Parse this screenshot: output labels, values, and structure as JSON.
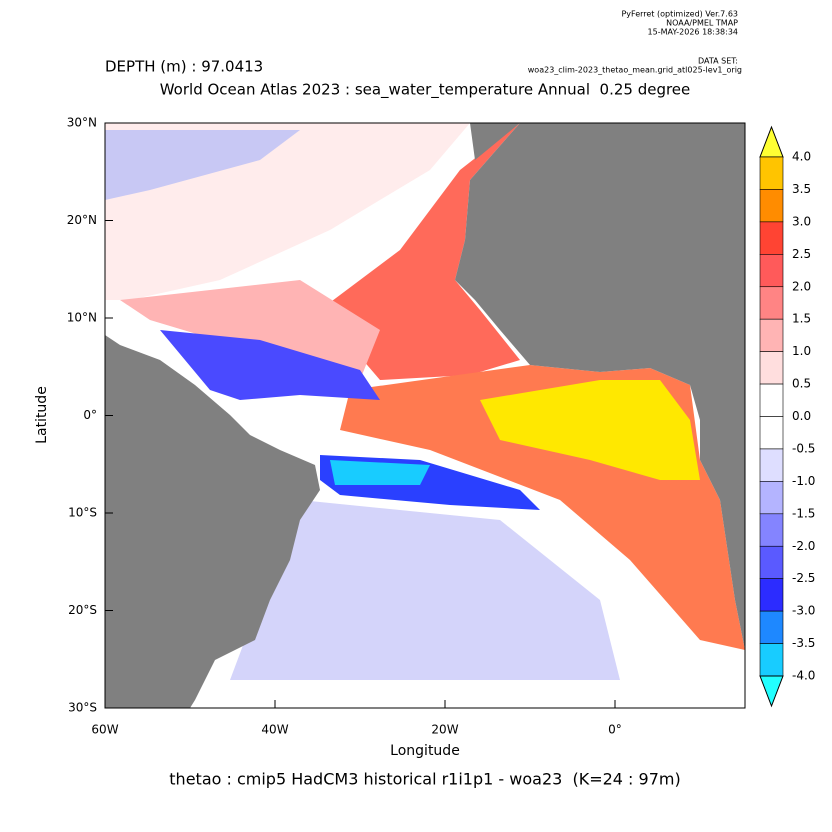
{
  "header": {
    "software": "PyFerret (optimized) Ver.7.63",
    "lab": "NOAA/PMEL TMAP",
    "date": "15-MAY-2026 18:38:34",
    "dataset_label": "DATA SET:",
    "dataset": "woa23_clim-2023_thetao_mean.grid_atl025-lev1_orig"
  },
  "depth": "DEPTH (m) : 97.0413",
  "title": "World Ocean Atlas 2023 : sea_water_temperature Annual  0.25 degree",
  "x_axis": {
    "label": "Longitude",
    "ticks": [
      "60W",
      "40W",
      "20W",
      "0°"
    ]
  },
  "y_axis": {
    "label": "Latitude",
    "ticks": [
      "30°N",
      "20°N",
      "10°N",
      "0°",
      "10°S",
      "20°S",
      "30°S"
    ]
  },
  "colorbar": {
    "labels": [
      "4.0",
      "3.5",
      "3.0",
      "2.5",
      "2.0",
      "1.5",
      "1.0",
      "0.5",
      "0.0",
      "-0.5",
      "-1.0",
      "-1.5",
      "-2.0",
      "-2.5",
      "-3.0",
      "-3.5",
      "-4.0"
    ],
    "colors": [
      "#ffff33",
      "#ffc400",
      "#ff8c00",
      "#ff4433",
      "#ff5a5a",
      "#ff8484",
      "#ffb4b4",
      "#ffdede",
      "#ffffff",
      "#ffffff",
      "#dedeff",
      "#b4b4ff",
      "#8484ff",
      "#5a5aff",
      "#2c2cff",
      "#1e88ff",
      "#18ccff",
      "#22ffff"
    ]
  },
  "footer": "thetao : cmip5 HadCM3 historical r1i1p1 - woa23  (K=24 : 97m)"
}
